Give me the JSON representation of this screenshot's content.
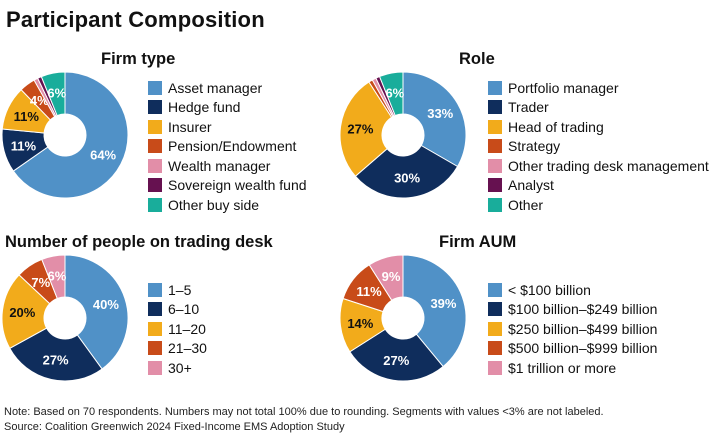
{
  "title": "Participant Composition",
  "footnote": "Note: Based on 70 respondents. Numbers may not total 100% due to rounding. Segments with values <3% are not labeled.",
  "source": "Source: Coalition Greenwich 2024 Fixed-Income EMS Adoption Study",
  "chart_data": [
    {
      "type": "pie",
      "title": "Firm type",
      "categories": [
        "Asset manager",
        "Hedge fund",
        "Insurer",
        "Pension/Endowment",
        "Wealth manager",
        "Sovereign wealth fund",
        "Other buy side"
      ],
      "values": [
        64,
        11,
        11,
        4,
        1,
        1,
        6
      ],
      "colors": [
        "#5091c7",
        "#0f2d5c",
        "#f2ab1b",
        "#c84b19",
        "#e28ea8",
        "#661150",
        "#19ad9b"
      ],
      "labels": [
        "64%",
        "11%",
        "11%",
        "4%",
        "",
        "",
        "6%"
      ]
    },
    {
      "type": "pie",
      "title": "Role",
      "categories": [
        "Portfolio manager",
        "Trader",
        "Head of trading",
        "Strategy",
        "Other trading desk management",
        "Analyst",
        "Other"
      ],
      "values": [
        33,
        30,
        27,
        1,
        1,
        1,
        6
      ],
      "colors": [
        "#5091c7",
        "#0f2d5c",
        "#f2ab1b",
        "#c84b19",
        "#e28ea8",
        "#661150",
        "#19ad9b"
      ],
      "labels": [
        "33%",
        "30%",
        "27%",
        "",
        "",
        "",
        "6%"
      ]
    },
    {
      "type": "pie",
      "title": "Number of people on trading desk",
      "categories": [
        "1–5",
        "6–10",
        "11–20",
        "21–30",
        "30+"
      ],
      "values": [
        40,
        27,
        20,
        7,
        6
      ],
      "colors": [
        "#5091c7",
        "#0f2d5c",
        "#f2ab1b",
        "#c84b19",
        "#e28ea8"
      ],
      "labels": [
        "40%",
        "27%",
        "20%",
        "7%",
        "6%"
      ]
    },
    {
      "type": "pie",
      "title": "Firm AUM",
      "categories": [
        "< $100 billion",
        "$100 billion–$249 billion",
        "$250 billion–$499 billion",
        "$500 billion–$999 billion",
        "$1 trillion or more"
      ],
      "values": [
        39,
        27,
        14,
        11,
        9
      ],
      "colors": [
        "#5091c7",
        "#0f2d5c",
        "#f2ab1b",
        "#c84b19",
        "#e28ea8"
      ],
      "labels": [
        "39%",
        "27%",
        "14%",
        "11%",
        "9%"
      ]
    }
  ]
}
